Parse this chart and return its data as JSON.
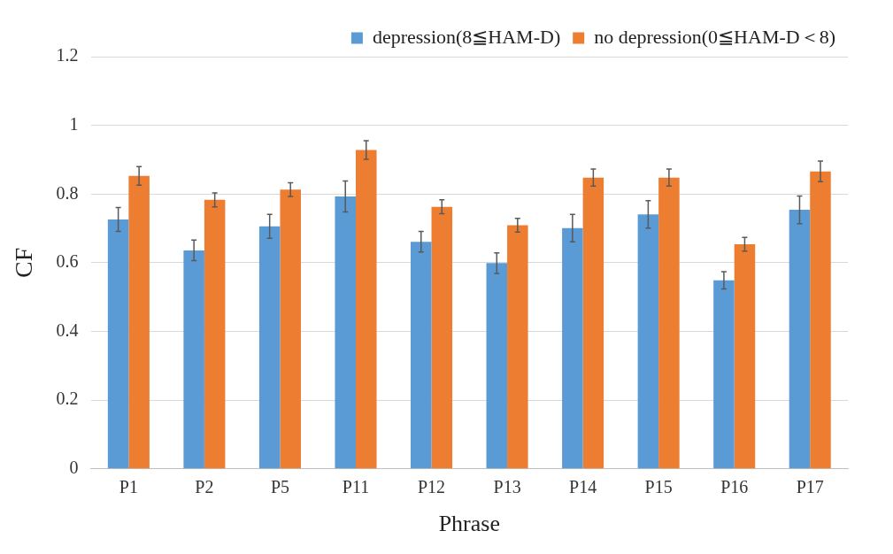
{
  "chart_data": {
    "type": "bar",
    "xlabel": "Phrase",
    "ylabel": "CF",
    "categories": [
      "P1",
      "P2",
      "P5",
      "P11",
      "P12",
      "P13",
      "P14",
      "P15",
      "P16",
      "P17"
    ],
    "series": [
      {
        "name": "depression(8≦HAM-D)",
        "color": "#5b9bd5",
        "values": [
          0.726,
          0.636,
          0.706,
          0.793,
          0.661,
          0.599,
          0.701,
          0.741,
          0.549,
          0.754
        ],
        "errors": [
          0.035,
          0.03,
          0.035,
          0.045,
          0.03,
          0.03,
          0.04,
          0.04,
          0.025,
          0.04
        ]
      },
      {
        "name": "no depression(0≦HAM-D＜8)",
        "color": "#ed7d31",
        "values": [
          0.853,
          0.783,
          0.813,
          0.928,
          0.763,
          0.709,
          0.848,
          0.848,
          0.654,
          0.866
        ],
        "errors": [
          0.027,
          0.02,
          0.02,
          0.027,
          0.02,
          0.02,
          0.025,
          0.025,
          0.02,
          0.03
        ]
      }
    ],
    "ylim": [
      0,
      1.2
    ],
    "yticks": [
      0,
      0.2,
      0.4,
      0.6,
      0.8,
      1,
      1.2
    ],
    "grid": "y",
    "legend": "top right"
  }
}
